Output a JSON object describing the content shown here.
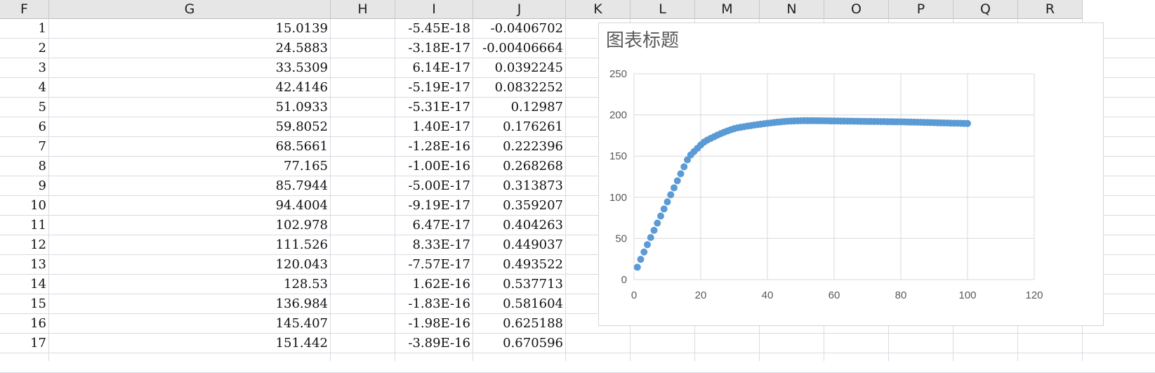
{
  "columns": [
    "F",
    "G",
    "H",
    "I",
    "J",
    "K",
    "L",
    "M",
    "N",
    "O",
    "P",
    "Q",
    "R"
  ],
  "rows": [
    {
      "f": "1",
      "g": "15.0139",
      "i": "-5.45E-18",
      "j": "-0.0406702"
    },
    {
      "f": "2",
      "g": "24.5883",
      "i": "-3.18E-17",
      "j": "-0.00406664"
    },
    {
      "f": "3",
      "g": "33.5309",
      "i": "6.14E-17",
      "j": "0.0392245"
    },
    {
      "f": "4",
      "g": "42.4146",
      "i": "-5.19E-17",
      "j": "0.0832252"
    },
    {
      "f": "5",
      "g": "51.0933",
      "i": "-5.31E-17",
      "j": "0.12987"
    },
    {
      "f": "6",
      "g": "59.8052",
      "i": "1.40E-17",
      "j": "0.176261"
    },
    {
      "f": "7",
      "g": "68.5661",
      "i": "-1.28E-16",
      "j": "0.222396"
    },
    {
      "f": "8",
      "g": "77.165",
      "i": "-1.00E-16",
      "j": "0.268268"
    },
    {
      "f": "9",
      "g": "85.7944",
      "i": "-5.00E-17",
      "j": "0.313873"
    },
    {
      "f": "10",
      "g": "94.4004",
      "i": "-9.19E-17",
      "j": "0.359207"
    },
    {
      "f": "11",
      "g": "102.978",
      "i": "6.47E-17",
      "j": "0.404263"
    },
    {
      "f": "12",
      "g": "111.526",
      "i": "8.33E-17",
      "j": "0.449037"
    },
    {
      "f": "13",
      "g": "120.043",
      "i": "-7.57E-17",
      "j": "0.493522"
    },
    {
      "f": "14",
      "g": "128.53",
      "i": "1.62E-16",
      "j": "0.537713"
    },
    {
      "f": "15",
      "g": "136.984",
      "i": "-1.83E-16",
      "j": "0.581604"
    },
    {
      "f": "16",
      "g": "145.407",
      "i": "-1.98E-16",
      "j": "0.625188"
    },
    {
      "f": "17",
      "g": "151.442",
      "i": "-3.89E-16",
      "j": "0.670596"
    }
  ],
  "chart_data": {
    "type": "scatter",
    "title": "图表标题",
    "xlim": [
      0,
      120
    ],
    "ylim": [
      0,
      250
    ],
    "xticks": [
      "0",
      "20",
      "40",
      "60",
      "80",
      "100",
      "120"
    ],
    "yticks": [
      "0",
      "50",
      "100",
      "150",
      "200",
      "250"
    ],
    "grid": true,
    "marker_color": "#5b9bd5",
    "x": [
      1,
      2,
      3,
      4,
      5,
      6,
      7,
      8,
      9,
      10,
      11,
      12,
      13,
      14,
      15,
      16,
      17,
      18,
      19,
      20,
      21,
      22,
      23,
      24,
      25,
      26,
      27,
      28,
      29,
      30,
      31,
      32,
      33,
      34,
      35,
      36,
      37,
      38,
      39,
      40,
      41,
      42,
      43,
      44,
      45,
      46,
      47,
      48,
      49,
      50,
      51,
      52,
      53,
      54,
      55,
      56,
      57,
      58,
      59,
      60,
      61,
      62,
      63,
      64,
      65,
      66,
      67,
      68,
      69,
      70,
      71,
      72,
      73,
      74,
      75,
      76,
      77,
      78,
      79,
      80,
      81,
      82,
      83,
      84,
      85,
      86,
      87,
      88,
      89,
      90,
      91,
      92,
      93,
      94,
      95,
      96,
      97,
      98,
      99,
      100
    ],
    "y": [
      15.0,
      24.6,
      33.5,
      42.4,
      51.1,
      59.8,
      68.6,
      77.2,
      85.8,
      94.4,
      103.0,
      111.5,
      120.0,
      128.5,
      137.0,
      145.4,
      151.4,
      155.5,
      159.5,
      163.5,
      167.0,
      169.5,
      171.5,
      173.5,
      175.5,
      177.3,
      179.0,
      180.5,
      182.0,
      183.3,
      184.3,
      185.0,
      185.7,
      186.4,
      187.0,
      187.6,
      188.2,
      188.8,
      189.3,
      189.8,
      190.3,
      190.8,
      191.2,
      191.6,
      192.0,
      192.3,
      192.5,
      192.7,
      192.8,
      192.9,
      193.0,
      193.0,
      193.0,
      193.0,
      192.9,
      192.9,
      192.8,
      192.8,
      192.7,
      192.7,
      192.6,
      192.5,
      192.5,
      192.4,
      192.4,
      192.3,
      192.3,
      192.2,
      192.2,
      192.1,
      192.1,
      192.0,
      192.0,
      191.9,
      191.9,
      191.8,
      191.8,
      191.7,
      191.7,
      191.6,
      191.5,
      191.4,
      191.3,
      191.2,
      191.1,
      191.0,
      190.9,
      190.8,
      190.7,
      190.6,
      190.5,
      190.4,
      190.3,
      190.2,
      190.1,
      190.0,
      189.9,
      189.8,
      189.7,
      189.6
    ]
  }
}
